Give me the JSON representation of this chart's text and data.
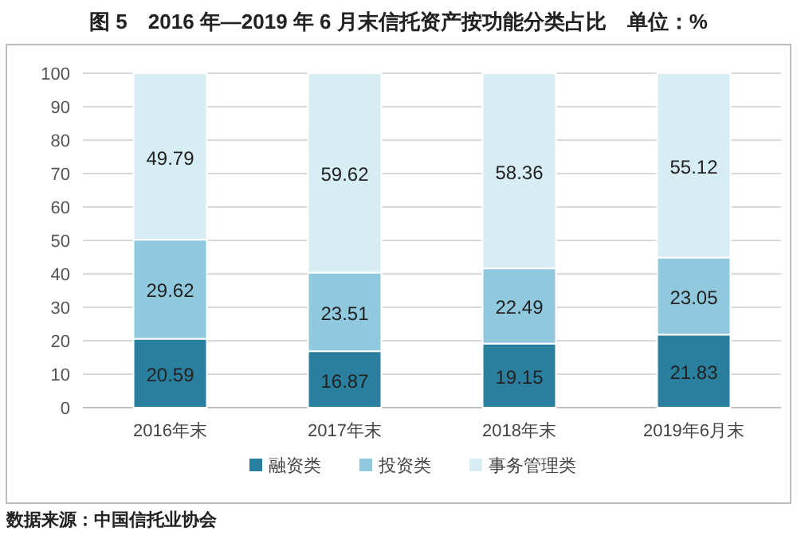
{
  "chart_data": {
    "type": "bar",
    "stacked": true,
    "title": "图 5　2016 年—2019 年 6 月末信托资产按功能分类占比　单位：%",
    "categories": [
      "2016年末",
      "2017年末",
      "2018年末",
      "2019年6月末"
    ],
    "series": [
      {
        "name": "融资类",
        "color": "#2b7f9e",
        "values": [
          20.59,
          16.87,
          19.15,
          21.83
        ]
      },
      {
        "name": "投资类",
        "color": "#90c9de",
        "values": [
          29.62,
          23.51,
          22.49,
          23.05
        ]
      },
      {
        "name": "事务管理类",
        "color": "#d6edf4",
        "values": [
          49.79,
          59.62,
          58.36,
          55.12
        ]
      }
    ],
    "ylim": [
      0,
      100
    ],
    "yticks": [
      0,
      10,
      20,
      30,
      40,
      50,
      60,
      70,
      80,
      90,
      100
    ],
    "grid": "y",
    "legend": "bottom",
    "data_labels": true,
    "annotations": [
      "数据来源：中国信托业协会"
    ]
  }
}
